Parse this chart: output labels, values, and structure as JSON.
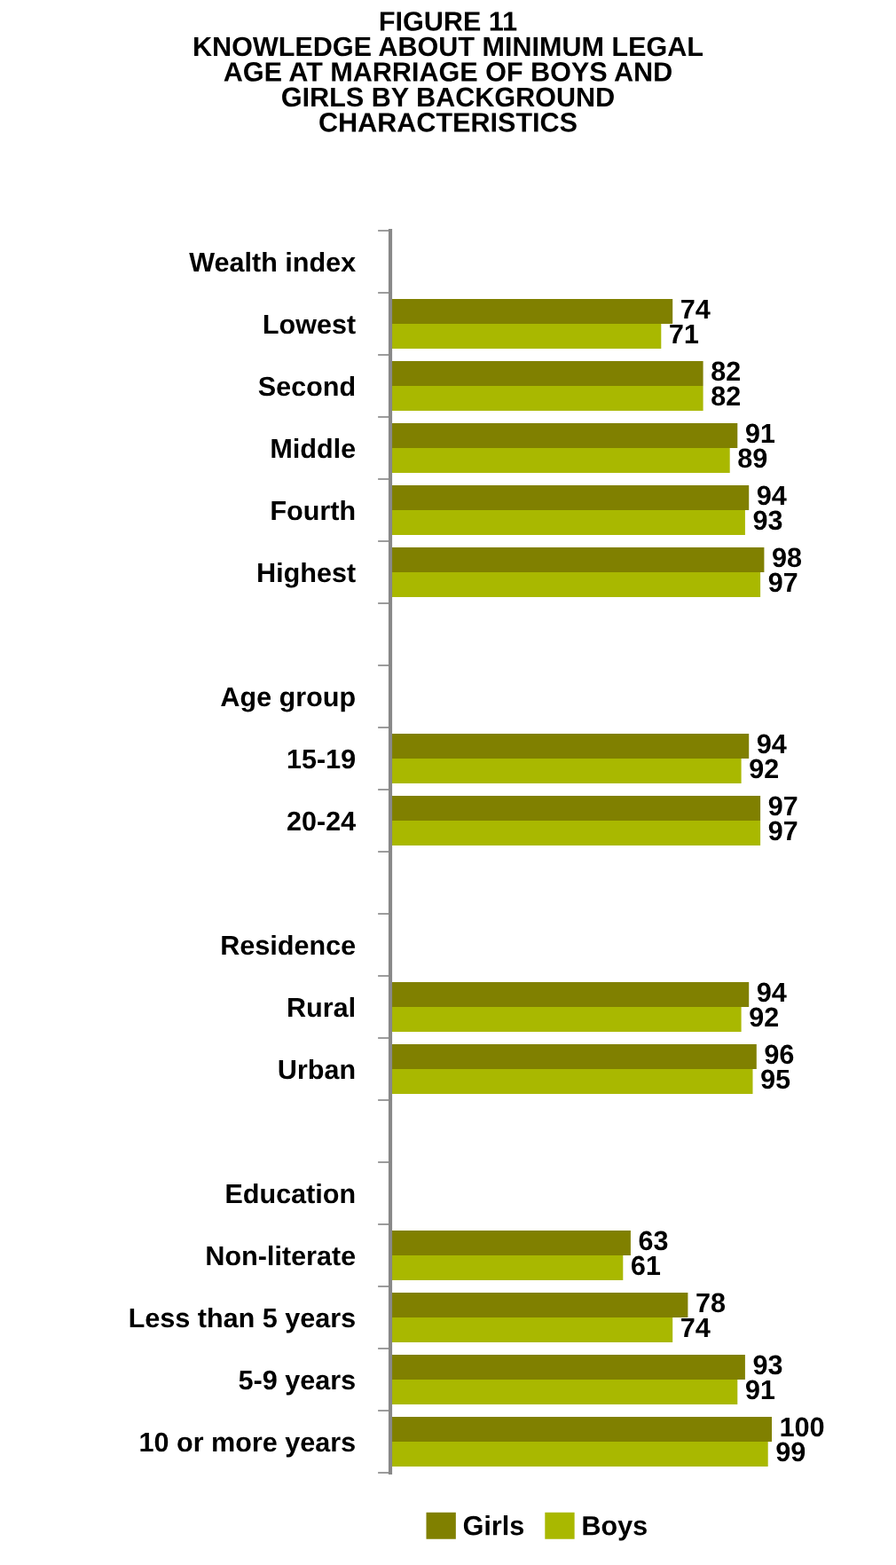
{
  "chart_data": {
    "type": "bar",
    "orientation": "horizontal",
    "title": "FIGURE 11\nKNOWLEDGE ABOUT MINIMUM LEGAL\nAGE AT MARRIAGE OF BOYS AND\nGIRLS BY BACKGROUND\nCHARACTERISTICS",
    "categories": [
      "Wealth index",
      "Lowest",
      "Second",
      "Middle",
      "Fourth",
      "Highest",
      null,
      "Age group",
      "15-19",
      "20-24",
      null,
      "Residence",
      "Rural",
      "Urban",
      null,
      "Education",
      "Non-literate",
      "Less than 5 years",
      "5-9 years",
      "10 or more years"
    ],
    "series": [
      {
        "name": "Girls",
        "color": "#808000",
        "values": [
          null,
          74,
          82,
          91,
          94,
          98,
          null,
          null,
          94,
          97,
          null,
          null,
          94,
          96,
          null,
          null,
          63,
          78,
          93,
          100
        ]
      },
      {
        "name": "Boys",
        "color": "#a9b800",
        "values": [
          null,
          71,
          82,
          89,
          93,
          97,
          null,
          null,
          92,
          97,
          null,
          null,
          92,
          95,
          null,
          null,
          61,
          74,
          91,
          99
        ]
      }
    ],
    "data_labels": true,
    "legend": "bottom",
    "grid": false
  }
}
